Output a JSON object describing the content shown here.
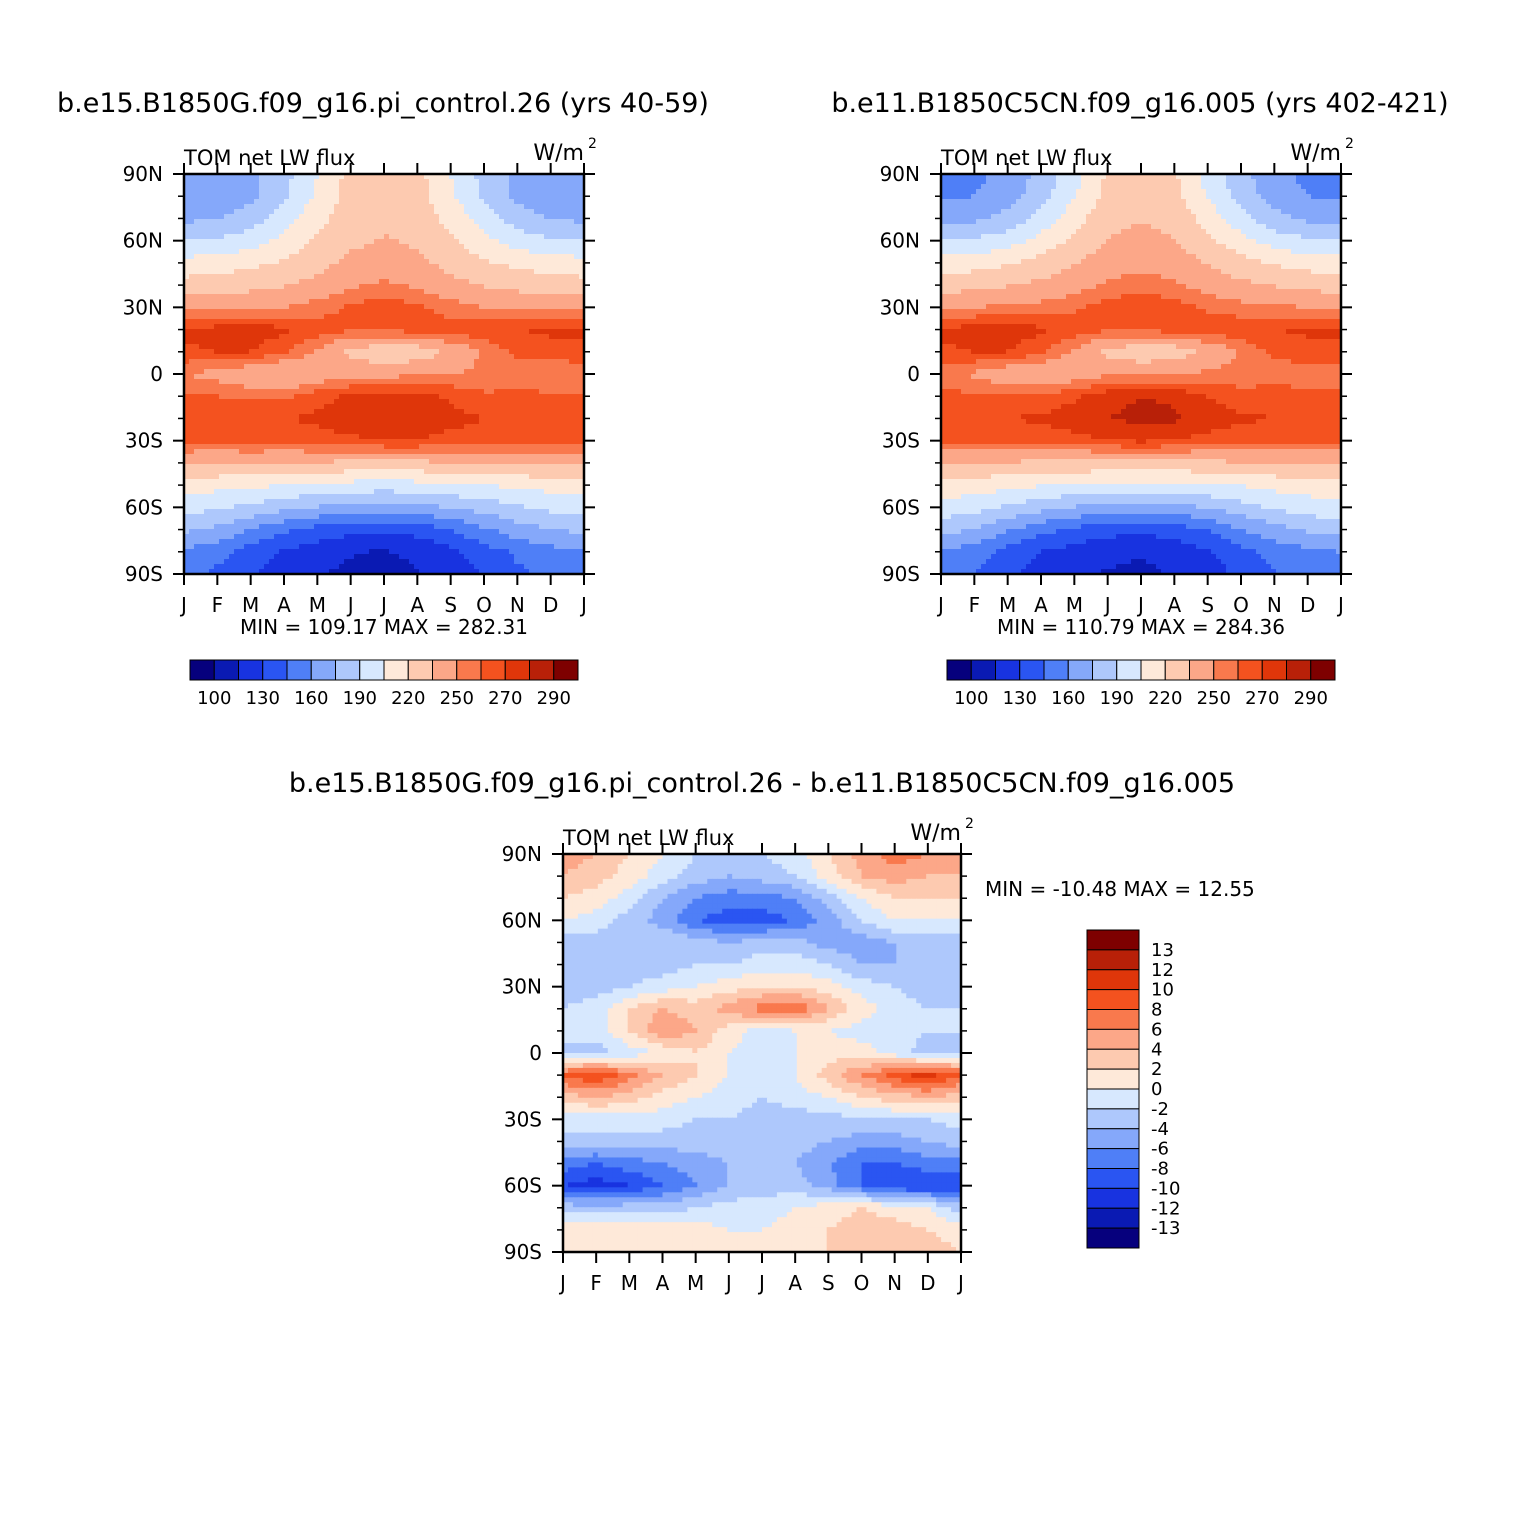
{
  "palette": {
    "levels": [
      100,
      115,
      130,
      145,
      160,
      175,
      190,
      205,
      220,
      235,
      250,
      260,
      270,
      280,
      290
    ],
    "colors": [
      "#06007d",
      "#0a1ab3",
      "#1833e0",
      "#2a55f2",
      "#4f7ff7",
      "#85a8fa",
      "#aec8fc",
      "#d7e8fe",
      "#fee9d9",
      "#fdcab0",
      "#fca788",
      "#f9794d",
      "#f4521f",
      "#df360a",
      "#b82008",
      "#7e0000"
    ]
  },
  "diff_palette": {
    "levels": [
      -13,
      -12,
      -10,
      -8,
      -6,
      -4,
      -2,
      0,
      2,
      4,
      6,
      8,
      10,
      12,
      13
    ],
    "colors": [
      "#06007d",
      "#0a1ab3",
      "#1833e0",
      "#2a55f2",
      "#4f7ff7",
      "#85a8fa",
      "#aec8fc",
      "#d7e8fe",
      "#fee9d9",
      "#fdcab0",
      "#fca788",
      "#f9794d",
      "#f4521f",
      "#df360a",
      "#b82008",
      "#7e0000"
    ]
  },
  "axes": {
    "month_labels": [
      "J",
      "F",
      "M",
      "A",
      "M",
      "J",
      "J",
      "A",
      "S",
      "O",
      "N",
      "D",
      "J"
    ],
    "lat_labels": [
      "90N",
      "60N",
      "30N",
      "0",
      "30S",
      "60S",
      "90S"
    ],
    "ylim": [
      -90,
      90
    ]
  },
  "chart_data": [
    {
      "type": "heatmap",
      "title": "b.e15.B1850G.f09_g16.pi_control.26 (yrs 40-59)",
      "left_label": "TOM net LW flux",
      "unit_label": "W/m",
      "unit_exp": "2",
      "min_label": "MIN = 109.17",
      "max_label": "MAX = 282.31",
      "colorbar_labels": [
        "100",
        "130",
        "160",
        "190",
        "220",
        "250",
        "270",
        "290"
      ],
      "lat": [
        90,
        80,
        70,
        60,
        50,
        40,
        30,
        20,
        10,
        0,
        -10,
        -20,
        -30,
        -40,
        -50,
        -60,
        -70,
        -80,
        -90
      ],
      "months": [
        "Jan",
        "Feb",
        "Mar",
        "Apr",
        "May",
        "Jun",
        "Jul",
        "Aug",
        "Sep",
        "Oct",
        "Nov",
        "Dec",
        "Jan"
      ],
      "values": [
        [
          160,
          162,
          170,
          185,
          205,
          225,
          228,
          225,
          205,
          185,
          170,
          162,
          160
        ],
        [
          163,
          165,
          172,
          188,
          208,
          226,
          229,
          226,
          208,
          188,
          172,
          165,
          163
        ],
        [
          172,
          174,
          182,
          198,
          215,
          229,
          232,
          229,
          215,
          198,
          182,
          174,
          172
        ],
        [
          190,
          192,
          198,
          210,
          222,
          232,
          236,
          233,
          222,
          210,
          198,
          192,
          190
        ],
        [
          210,
          212,
          216,
          222,
          230,
          238,
          242,
          238,
          230,
          222,
          216,
          212,
          210
        ],
        [
          226,
          228,
          230,
          234,
          240,
          248,
          252,
          248,
          240,
          234,
          230,
          228,
          226
        ],
        [
          245,
          246,
          248,
          250,
          255,
          262,
          266,
          262,
          255,
          250,
          248,
          246,
          245
        ],
        [
          272,
          274,
          276,
          272,
          266,
          262,
          262,
          264,
          266,
          268,
          270,
          272,
          272
        ],
        [
          268,
          270,
          270,
          262,
          248,
          230,
          224,
          226,
          238,
          252,
          262,
          266,
          268
        ],
        [
          250,
          246,
          238,
          232,
          240,
          246,
          246,
          248,
          250,
          252,
          254,
          252,
          250
        ],
        [
          262,
          260,
          258,
          258,
          266,
          272,
          276,
          274,
          268,
          262,
          262,
          262,
          262
        ],
        [
          266,
          266,
          268,
          270,
          272,
          276,
          279,
          278,
          274,
          270,
          268,
          266,
          266
        ],
        [
          262,
          262,
          264,
          264,
          266,
          268,
          270,
          270,
          266,
          264,
          262,
          262,
          262
        ],
        [
          238,
          236,
          236,
          234,
          234,
          232,
          232,
          232,
          234,
          236,
          238,
          238,
          238
        ],
        [
          212,
          210,
          208,
          205,
          202,
          200,
          198,
          200,
          202,
          205,
          208,
          210,
          212
        ],
        [
          196,
          192,
          186,
          180,
          174,
          170,
          168,
          170,
          176,
          182,
          188,
          194,
          196
        ],
        [
          178,
          172,
          160,
          148,
          140,
          135,
          133,
          136,
          145,
          158,
          168,
          175,
          178
        ],
        [
          158,
          150,
          138,
          128,
          122,
          116,
          114,
          118,
          126,
          138,
          148,
          155,
          158
        ],
        [
          150,
          142,
          132,
          122,
          116,
          112,
          110,
          114,
          120,
          132,
          142,
          148,
          150
        ]
      ]
    },
    {
      "type": "heatmap",
      "title": "b.e11.B1850C5CN.f09_g16.005 (yrs 402-421)",
      "left_label": "TOM net LW flux",
      "unit_label": "W/m",
      "unit_exp": "2",
      "min_label": "MIN = 110.79",
      "max_label": "MAX = 284.36",
      "colorbar_labels": [
        "100",
        "130",
        "160",
        "190",
        "220",
        "250",
        "270",
        "290"
      ],
      "lat": [
        90,
        80,
        70,
        60,
        50,
        40,
        30,
        20,
        10,
        0,
        -10,
        -20,
        -30,
        -40,
        -50,
        -60,
        -70,
        -80,
        -90
      ],
      "months": [
        "Jan",
        "Feb",
        "Mar",
        "Apr",
        "May",
        "Jun",
        "Jul",
        "Aug",
        "Sep",
        "Oct",
        "Nov",
        "Dec",
        "Jan"
      ],
      "values": [
        [
          154,
          156,
          165,
          180,
          200,
          222,
          226,
          222,
          200,
          180,
          165,
          156,
          154
        ],
        [
          158,
          160,
          168,
          184,
          204,
          224,
          228,
          224,
          204,
          184,
          168,
          160,
          158
        ],
        [
          170,
          172,
          180,
          196,
          214,
          230,
          234,
          230,
          214,
          196,
          180,
          172,
          170
        ],
        [
          190,
          192,
          198,
          210,
          224,
          236,
          240,
          236,
          224,
          210,
          198,
          192,
          190
        ],
        [
          212,
          214,
          218,
          226,
          234,
          242,
          246,
          242,
          234,
          226,
          218,
          214,
          212
        ],
        [
          228,
          230,
          234,
          238,
          244,
          252,
          256,
          252,
          244,
          238,
          234,
          230,
          228
        ],
        [
          248,
          250,
          252,
          254,
          258,
          264,
          268,
          264,
          258,
          254,
          252,
          250,
          248
        ],
        [
          272,
          274,
          276,
          272,
          266,
          262,
          262,
          264,
          266,
          268,
          270,
          272,
          272
        ],
        [
          268,
          270,
          270,
          262,
          248,
          230,
          224,
          226,
          238,
          252,
          262,
          266,
          268
        ],
        [
          252,
          248,
          240,
          236,
          242,
          248,
          248,
          250,
          252,
          254,
          256,
          254,
          252
        ],
        [
          264,
          262,
          260,
          262,
          268,
          276,
          280,
          278,
          270,
          264,
          264,
          264,
          264
        ],
        [
          268,
          268,
          270,
          272,
          276,
          280,
          283,
          282,
          276,
          272,
          270,
          268,
          268
        ],
        [
          262,
          262,
          264,
          264,
          266,
          270,
          272,
          270,
          266,
          264,
          262,
          262,
          262
        ],
        [
          236,
          234,
          234,
          232,
          232,
          230,
          230,
          230,
          232,
          234,
          236,
          236,
          236
        ],
        [
          214,
          212,
          210,
          206,
          204,
          202,
          200,
          202,
          204,
          206,
          210,
          212,
          214
        ],
        [
          200,
          196,
          188,
          180,
          174,
          170,
          168,
          170,
          176,
          184,
          192,
          198,
          200
        ],
        [
          180,
          174,
          162,
          150,
          142,
          136,
          134,
          138,
          146,
          160,
          170,
          177,
          180
        ],
        [
          160,
          152,
          140,
          130,
          124,
          118,
          116,
          120,
          128,
          140,
          150,
          157,
          160
        ],
        [
          152,
          144,
          134,
          124,
          118,
          114,
          112,
          116,
          122,
          134,
          144,
          150,
          152
        ]
      ]
    },
    {
      "type": "heatmap",
      "title": "b.e15.B1850G.f09_g16.pi_control.26 - b.e11.B1850C5CN.f09_g16.005",
      "left_label": "TOM net LW flux",
      "unit_label": "W/m",
      "unit_exp": "2",
      "min_label": "MIN = -10.48",
      "max_label": "MAX = 12.55",
      "colorbar_labels": [
        "13",
        "12",
        "10",
        "8",
        "6",
        "4",
        "2",
        "0",
        "-2",
        "-4",
        "-6",
        "-8",
        "-10",
        "-12",
        "-13"
      ],
      "lat": [
        90,
        80,
        70,
        60,
        50,
        40,
        30,
        20,
        10,
        0,
        -10,
        -20,
        -30,
        -40,
        -50,
        -60,
        -70,
        -80,
        -90
      ],
      "months": [
        "Jan",
        "Feb",
        "Mar",
        "Apr",
        "May",
        "Jun",
        "Jul",
        "Aug",
        "Sep",
        "Oct",
        "Nov",
        "Dec",
        "Jan"
      ],
      "values": [
        [
          5,
          4,
          2,
          0,
          -2,
          -3,
          -2,
          -1,
          2,
          5,
          7,
          6,
          5
        ],
        [
          4,
          3,
          1,
          -1,
          -3,
          -4,
          -3,
          -2,
          1,
          4,
          5,
          4,
          4
        ],
        [
          2,
          1,
          -1,
          -4,
          -6,
          -7,
          -7,
          -6,
          -3,
          0,
          2,
          2,
          2
        ],
        [
          0,
          -1,
          -3,
          -5,
          -8,
          -9,
          -9,
          -8,
          -5,
          -2,
          0,
          0,
          0
        ],
        [
          -3,
          -3,
          -3,
          -2,
          -3,
          -4,
          -3,
          -3,
          -5,
          -5,
          -4,
          -3,
          -3
        ],
        [
          -4,
          -4,
          -3,
          -3,
          -2,
          -2,
          -1,
          -1,
          -2,
          -4,
          -4,
          -4,
          -4
        ],
        [
          -3,
          -3,
          -2,
          -1,
          0,
          1,
          2,
          2,
          1,
          -1,
          -2,
          -3,
          -3
        ],
        [
          -2,
          -1,
          2,
          4,
          3,
          5,
          7,
          8,
          4,
          1,
          -1,
          -2,
          -2
        ],
        [
          -2,
          -1,
          2,
          6,
          4,
          1,
          -1,
          0,
          0,
          -1,
          -1,
          -2,
          -2
        ],
        [
          -2,
          -3,
          -1,
          0,
          2,
          0,
          -1,
          0,
          1,
          1,
          -1,
          -3,
          -2
        ],
        [
          8,
          10,
          7,
          4,
          2,
          0,
          -1,
          0,
          3,
          6,
          9,
          11,
          8
        ],
        [
          3,
          4,
          3,
          1,
          0,
          -1,
          -2,
          -1,
          0,
          2,
          3,
          4,
          3
        ],
        [
          -1,
          -1,
          -1,
          -1,
          -2,
          -2,
          -3,
          -3,
          -3,
          -2,
          -2,
          -2,
          -1
        ],
        [
          -3,
          -3,
          -3,
          -3,
          -3,
          -3,
          -3,
          -3,
          -4,
          -5,
          -5,
          -4,
          -3
        ],
        [
          -7,
          -8,
          -7,
          -6,
          -5,
          -4,
          -4,
          -4,
          -6,
          -8,
          -8,
          -7,
          -7
        ],
        [
          -10,
          -11,
          -10,
          -8,
          -6,
          -4,
          -3,
          -3,
          -5,
          -8,
          -10,
          -10,
          -10
        ],
        [
          -3,
          -3,
          -3,
          -3,
          -2,
          -1,
          -1,
          0,
          1,
          2,
          1,
          0,
          -3
        ],
        [
          1,
          1,
          1,
          1,
          1,
          0,
          0,
          1,
          2,
          3,
          3,
          2,
          1
        ],
        [
          2,
          2,
          2,
          2,
          1,
          0,
          0,
          1,
          2,
          3,
          3,
          3,
          2
        ]
      ]
    }
  ]
}
